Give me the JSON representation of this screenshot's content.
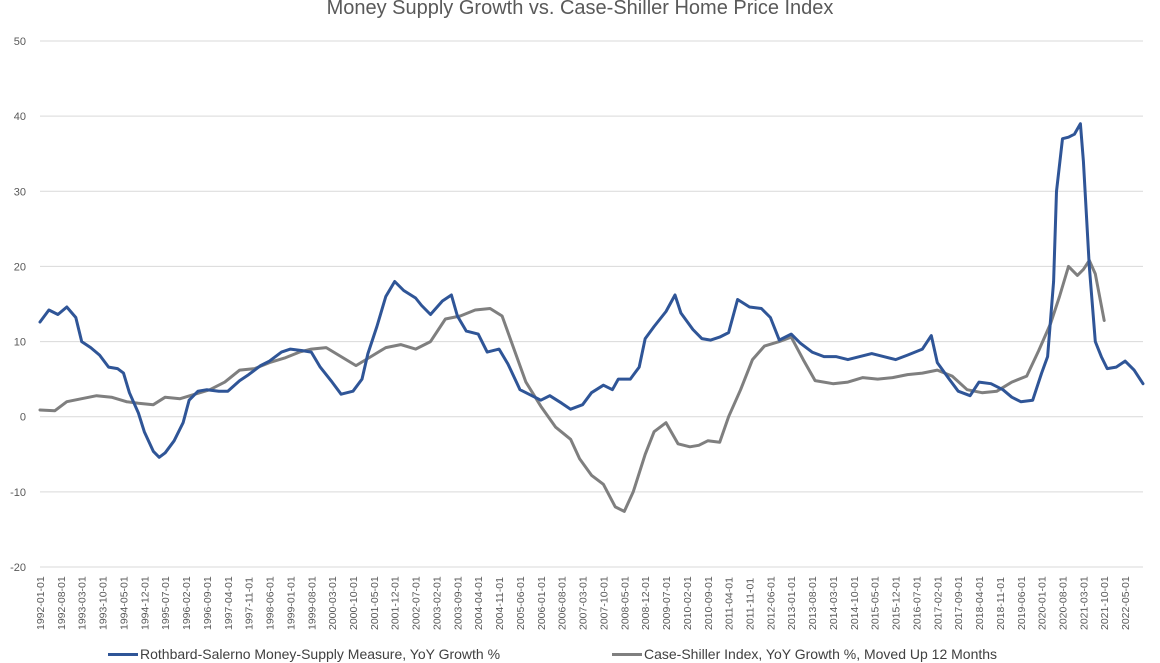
{
  "chart_data": {
    "type": "line",
    "title": "Money Supply Growth vs. Case-Shiller Home Price Index",
    "xlabel": "",
    "ylabel": "",
    "ylim": [
      -20,
      50
    ],
    "yticks": [
      50,
      40,
      30,
      20,
      10,
      0,
      -10,
      -20
    ],
    "grid": true,
    "legend_position": "bottom",
    "xtick_labels": [
      "1992-01-01",
      "1992-08-01",
      "1993-03-01",
      "1993-10-01",
      "1994-05-01",
      "1994-12-01",
      "1995-07-01",
      "1996-02-01",
      "1996-09-01",
      "1997-04-01",
      "1997-11-01",
      "1998-06-01",
      "1999-01-01",
      "1999-08-01",
      "2000-03-01",
      "2000-10-01",
      "2001-05-01",
      "2001-12-01",
      "2002-07-01",
      "2003-02-01",
      "2003-09-01",
      "2004-04-01",
      "2004-11-01",
      "2005-06-01",
      "2006-01-01",
      "2006-08-01",
      "2007-03-01",
      "2007-10-01",
      "2008-05-01",
      "2008-12-01",
      "2009-07-01",
      "2010-02-01",
      "2010-09-01",
      "2011-04-01",
      "2011-11-01",
      "2012-06-01",
      "2013-01-01",
      "2013-08-01",
      "2014-03-01",
      "2014-10-01",
      "2015-05-01",
      "2015-12-01",
      "2016-07-01",
      "2017-02-01",
      "2017-09-01",
      "2018-04-01",
      "2018-11-01",
      "2019-06-01",
      "2020-01-01",
      "2020-08-01",
      "2021-03-01",
      "2021-10-01",
      "2022-05-01"
    ],
    "series": [
      {
        "name": "Rothbard-Salerno Money-Supply Measure, YoY Growth %",
        "color": "#2F5597",
        "points": [
          [
            "1992-01-01",
            12.6
          ],
          [
            "1992-04-01",
            14.2
          ],
          [
            "1992-07-01",
            13.6
          ],
          [
            "1992-10-01",
            14.6
          ],
          [
            "1993-01-01",
            13.2
          ],
          [
            "1993-03-01",
            10.0
          ],
          [
            "1993-06-01",
            9.2
          ],
          [
            "1993-09-01",
            8.2
          ],
          [
            "1993-12-01",
            6.6
          ],
          [
            "1994-03-01",
            6.4
          ],
          [
            "1994-05-01",
            5.8
          ],
          [
            "1994-07-01",
            3.2
          ],
          [
            "1994-10-01",
            0.5
          ],
          [
            "1994-12-01",
            -2.0
          ],
          [
            "1995-03-01",
            -4.6
          ],
          [
            "1995-05-01",
            -5.4
          ],
          [
            "1995-07-01",
            -4.8
          ],
          [
            "1995-10-01",
            -3.2
          ],
          [
            "1996-01-01",
            -0.8
          ],
          [
            "1996-03-01",
            2.2
          ],
          [
            "1996-06-01",
            3.4
          ],
          [
            "1996-09-01",
            3.6
          ],
          [
            "1997-01-01",
            3.4
          ],
          [
            "1997-04-01",
            3.4
          ],
          [
            "1997-08-01",
            4.8
          ],
          [
            "1997-11-01",
            5.6
          ],
          [
            "1998-03-01",
            6.8
          ],
          [
            "1998-06-01",
            7.4
          ],
          [
            "1998-10-01",
            8.6
          ],
          [
            "1999-01-01",
            9.0
          ],
          [
            "1999-05-01",
            8.8
          ],
          [
            "1999-08-01",
            8.6
          ],
          [
            "1999-11-01",
            6.6
          ],
          [
            "2000-03-01",
            4.6
          ],
          [
            "2000-06-01",
            3.0
          ],
          [
            "2000-10-01",
            3.4
          ],
          [
            "2001-01-01",
            5.0
          ],
          [
            "2001-03-01",
            8.4
          ],
          [
            "2001-06-01",
            12.0
          ],
          [
            "2001-09-01",
            16.0
          ],
          [
            "2001-12-01",
            18.0
          ],
          [
            "2002-03-01",
            16.8
          ],
          [
            "2002-07-01",
            15.8
          ],
          [
            "2002-09-01",
            14.8
          ],
          [
            "2002-12-01",
            13.6
          ],
          [
            "2003-04-01",
            15.4
          ],
          [
            "2003-07-01",
            16.2
          ],
          [
            "2003-09-01",
            13.4
          ],
          [
            "2003-12-01",
            11.4
          ],
          [
            "2004-04-01",
            11.0
          ],
          [
            "2004-07-01",
            8.6
          ],
          [
            "2004-11-01",
            9.0
          ],
          [
            "2005-02-01",
            7.0
          ],
          [
            "2005-06-01",
            3.6
          ],
          [
            "2005-09-01",
            3.0
          ],
          [
            "2006-01-01",
            2.2
          ],
          [
            "2006-04-01",
            2.8
          ],
          [
            "2006-08-01",
            1.8
          ],
          [
            "2006-11-01",
            1.0
          ],
          [
            "2007-03-01",
            1.6
          ],
          [
            "2007-06-01",
            3.2
          ],
          [
            "2007-10-01",
            4.2
          ],
          [
            "2008-01-01",
            3.6
          ],
          [
            "2008-03-01",
            5.0
          ],
          [
            "2008-07-01",
            5.0
          ],
          [
            "2008-10-01",
            6.6
          ],
          [
            "2008-12-01",
            10.4
          ],
          [
            "2009-03-01",
            12.0
          ],
          [
            "2009-07-01",
            14.0
          ],
          [
            "2009-10-01",
            16.2
          ],
          [
            "2009-12-01",
            13.8
          ],
          [
            "2010-04-01",
            11.6
          ],
          [
            "2010-07-01",
            10.4
          ],
          [
            "2010-10-01",
            10.2
          ],
          [
            "2011-01-01",
            10.6
          ],
          [
            "2011-04-01",
            11.2
          ],
          [
            "2011-07-01",
            15.6
          ],
          [
            "2011-11-01",
            14.6
          ],
          [
            "2012-03-01",
            14.4
          ],
          [
            "2012-06-01",
            13.2
          ],
          [
            "2012-09-01",
            10.2
          ],
          [
            "2013-01-01",
            11.0
          ],
          [
            "2013-04-01",
            9.8
          ],
          [
            "2013-08-01",
            8.6
          ],
          [
            "2013-12-01",
            8.0
          ],
          [
            "2014-04-01",
            8.0
          ],
          [
            "2014-08-01",
            7.6
          ],
          [
            "2014-12-01",
            8.0
          ],
          [
            "2015-04-01",
            8.4
          ],
          [
            "2015-08-01",
            8.0
          ],
          [
            "2015-12-01",
            7.6
          ],
          [
            "2016-04-01",
            8.2
          ],
          [
            "2016-09-01",
            9.0
          ],
          [
            "2016-12-01",
            10.8
          ],
          [
            "2017-02-01",
            7.2
          ],
          [
            "2017-06-01",
            5.0
          ],
          [
            "2017-09-01",
            3.4
          ],
          [
            "2018-01-01",
            2.8
          ],
          [
            "2018-04-01",
            4.6
          ],
          [
            "2018-08-01",
            4.4
          ],
          [
            "2018-12-01",
            3.6
          ],
          [
            "2019-03-01",
            2.6
          ],
          [
            "2019-06-01",
            2.0
          ],
          [
            "2019-10-01",
            2.2
          ],
          [
            "2020-01-01",
            5.8
          ],
          [
            "2020-03-01",
            8.0
          ],
          [
            "2020-05-01",
            18.0
          ],
          [
            "2020-06-01",
            30.0
          ],
          [
            "2020-08-01",
            37.0
          ],
          [
            "2020-10-01",
            37.2
          ],
          [
            "2020-12-01",
            37.6
          ],
          [
            "2021-02-01",
            39.0
          ],
          [
            "2021-03-01",
            34.0
          ],
          [
            "2021-05-01",
            20.0
          ],
          [
            "2021-07-01",
            10.0
          ],
          [
            "2021-09-01",
            8.0
          ],
          [
            "2021-11-01",
            6.4
          ],
          [
            "2022-02-01",
            6.6
          ],
          [
            "2022-05-01",
            7.4
          ],
          [
            "2022-08-01",
            6.2
          ],
          [
            "2022-11-01",
            4.4
          ]
        ]
      },
      {
        "name": "Case-Shiller Index, YoY Growth %, Moved Up 12 Months",
        "color": "#7F7F7F",
        "points": [
          [
            "1992-01-01",
            0.9
          ],
          [
            "1992-06-01",
            0.8
          ],
          [
            "1992-10-01",
            2.0
          ],
          [
            "1993-03-01",
            2.4
          ],
          [
            "1993-08-01",
            2.8
          ],
          [
            "1994-01-01",
            2.6
          ],
          [
            "1994-06-01",
            2.0
          ],
          [
            "1994-10-01",
            1.8
          ],
          [
            "1995-03-01",
            1.6
          ],
          [
            "1995-07-01",
            2.6
          ],
          [
            "1995-12-01",
            2.4
          ],
          [
            "1996-05-01",
            3.0
          ],
          [
            "1996-10-01",
            3.6
          ],
          [
            "1997-03-01",
            4.6
          ],
          [
            "1997-08-01",
            6.2
          ],
          [
            "1998-01-01",
            6.4
          ],
          [
            "1998-06-01",
            7.2
          ],
          [
            "1998-11-01",
            7.8
          ],
          [
            "1999-04-01",
            8.6
          ],
          [
            "1999-08-01",
            9.0
          ],
          [
            "2000-01-01",
            9.2
          ],
          [
            "2000-06-01",
            8.0
          ],
          [
            "2000-11-01",
            6.8
          ],
          [
            "2001-04-01",
            8.0
          ],
          [
            "2001-09-01",
            9.2
          ],
          [
            "2002-02-01",
            9.6
          ],
          [
            "2002-07-01",
            9.0
          ],
          [
            "2002-12-01",
            10.0
          ],
          [
            "2003-05-01",
            13.0
          ],
          [
            "2003-10-01",
            13.4
          ],
          [
            "2004-03-01",
            14.2
          ],
          [
            "2004-08-01",
            14.4
          ],
          [
            "2004-12-01",
            13.4
          ],
          [
            "2005-04-01",
            9.0
          ],
          [
            "2005-08-01",
            4.6
          ],
          [
            "2006-01-01",
            1.4
          ],
          [
            "2006-06-01",
            -1.4
          ],
          [
            "2006-11-01",
            -3.0
          ],
          [
            "2007-02-01",
            -5.6
          ],
          [
            "2007-06-01",
            -7.8
          ],
          [
            "2007-10-01",
            -9.0
          ],
          [
            "2008-02-01",
            -12.0
          ],
          [
            "2008-05-01",
            -12.6
          ],
          [
            "2008-08-01",
            -10.0
          ],
          [
            "2008-12-01",
            -5.0
          ],
          [
            "2009-03-01",
            -2.0
          ],
          [
            "2009-07-01",
            -0.8
          ],
          [
            "2009-11-01",
            -3.6
          ],
          [
            "2010-03-01",
            -4.0
          ],
          [
            "2010-06-01",
            -3.8
          ],
          [
            "2010-09-01",
            -3.2
          ],
          [
            "2011-01-01",
            -3.4
          ],
          [
            "2011-04-01",
            0.0
          ],
          [
            "2011-08-01",
            3.6
          ],
          [
            "2011-12-01",
            7.6
          ],
          [
            "2012-04-01",
            9.4
          ],
          [
            "2012-09-01",
            10.0
          ],
          [
            "2013-01-01",
            10.6
          ],
          [
            "2013-05-01",
            7.6
          ],
          [
            "2013-09-01",
            4.8
          ],
          [
            "2014-03-01",
            4.4
          ],
          [
            "2014-08-01",
            4.6
          ],
          [
            "2015-01-01",
            5.2
          ],
          [
            "2015-06-01",
            5.0
          ],
          [
            "2015-11-01",
            5.2
          ],
          [
            "2016-04-01",
            5.6
          ],
          [
            "2016-09-01",
            5.8
          ],
          [
            "2017-02-01",
            6.2
          ],
          [
            "2017-07-01",
            5.4
          ],
          [
            "2017-12-01",
            3.6
          ],
          [
            "2018-05-01",
            3.2
          ],
          [
            "2018-10-01",
            3.4
          ],
          [
            "2019-03-01",
            4.6
          ],
          [
            "2019-08-01",
            5.4
          ],
          [
            "2019-12-01",
            8.8
          ],
          [
            "2020-04-01",
            12.4
          ],
          [
            "2020-07-01",
            16.0
          ],
          [
            "2020-10-01",
            20.0
          ],
          [
            "2021-01-01",
            18.8
          ],
          [
            "2021-03-01",
            19.6
          ],
          [
            "2021-05-01",
            20.8
          ],
          [
            "2021-07-01",
            19.0
          ],
          [
            "2021-10-01",
            12.8
          ]
        ]
      }
    ]
  }
}
